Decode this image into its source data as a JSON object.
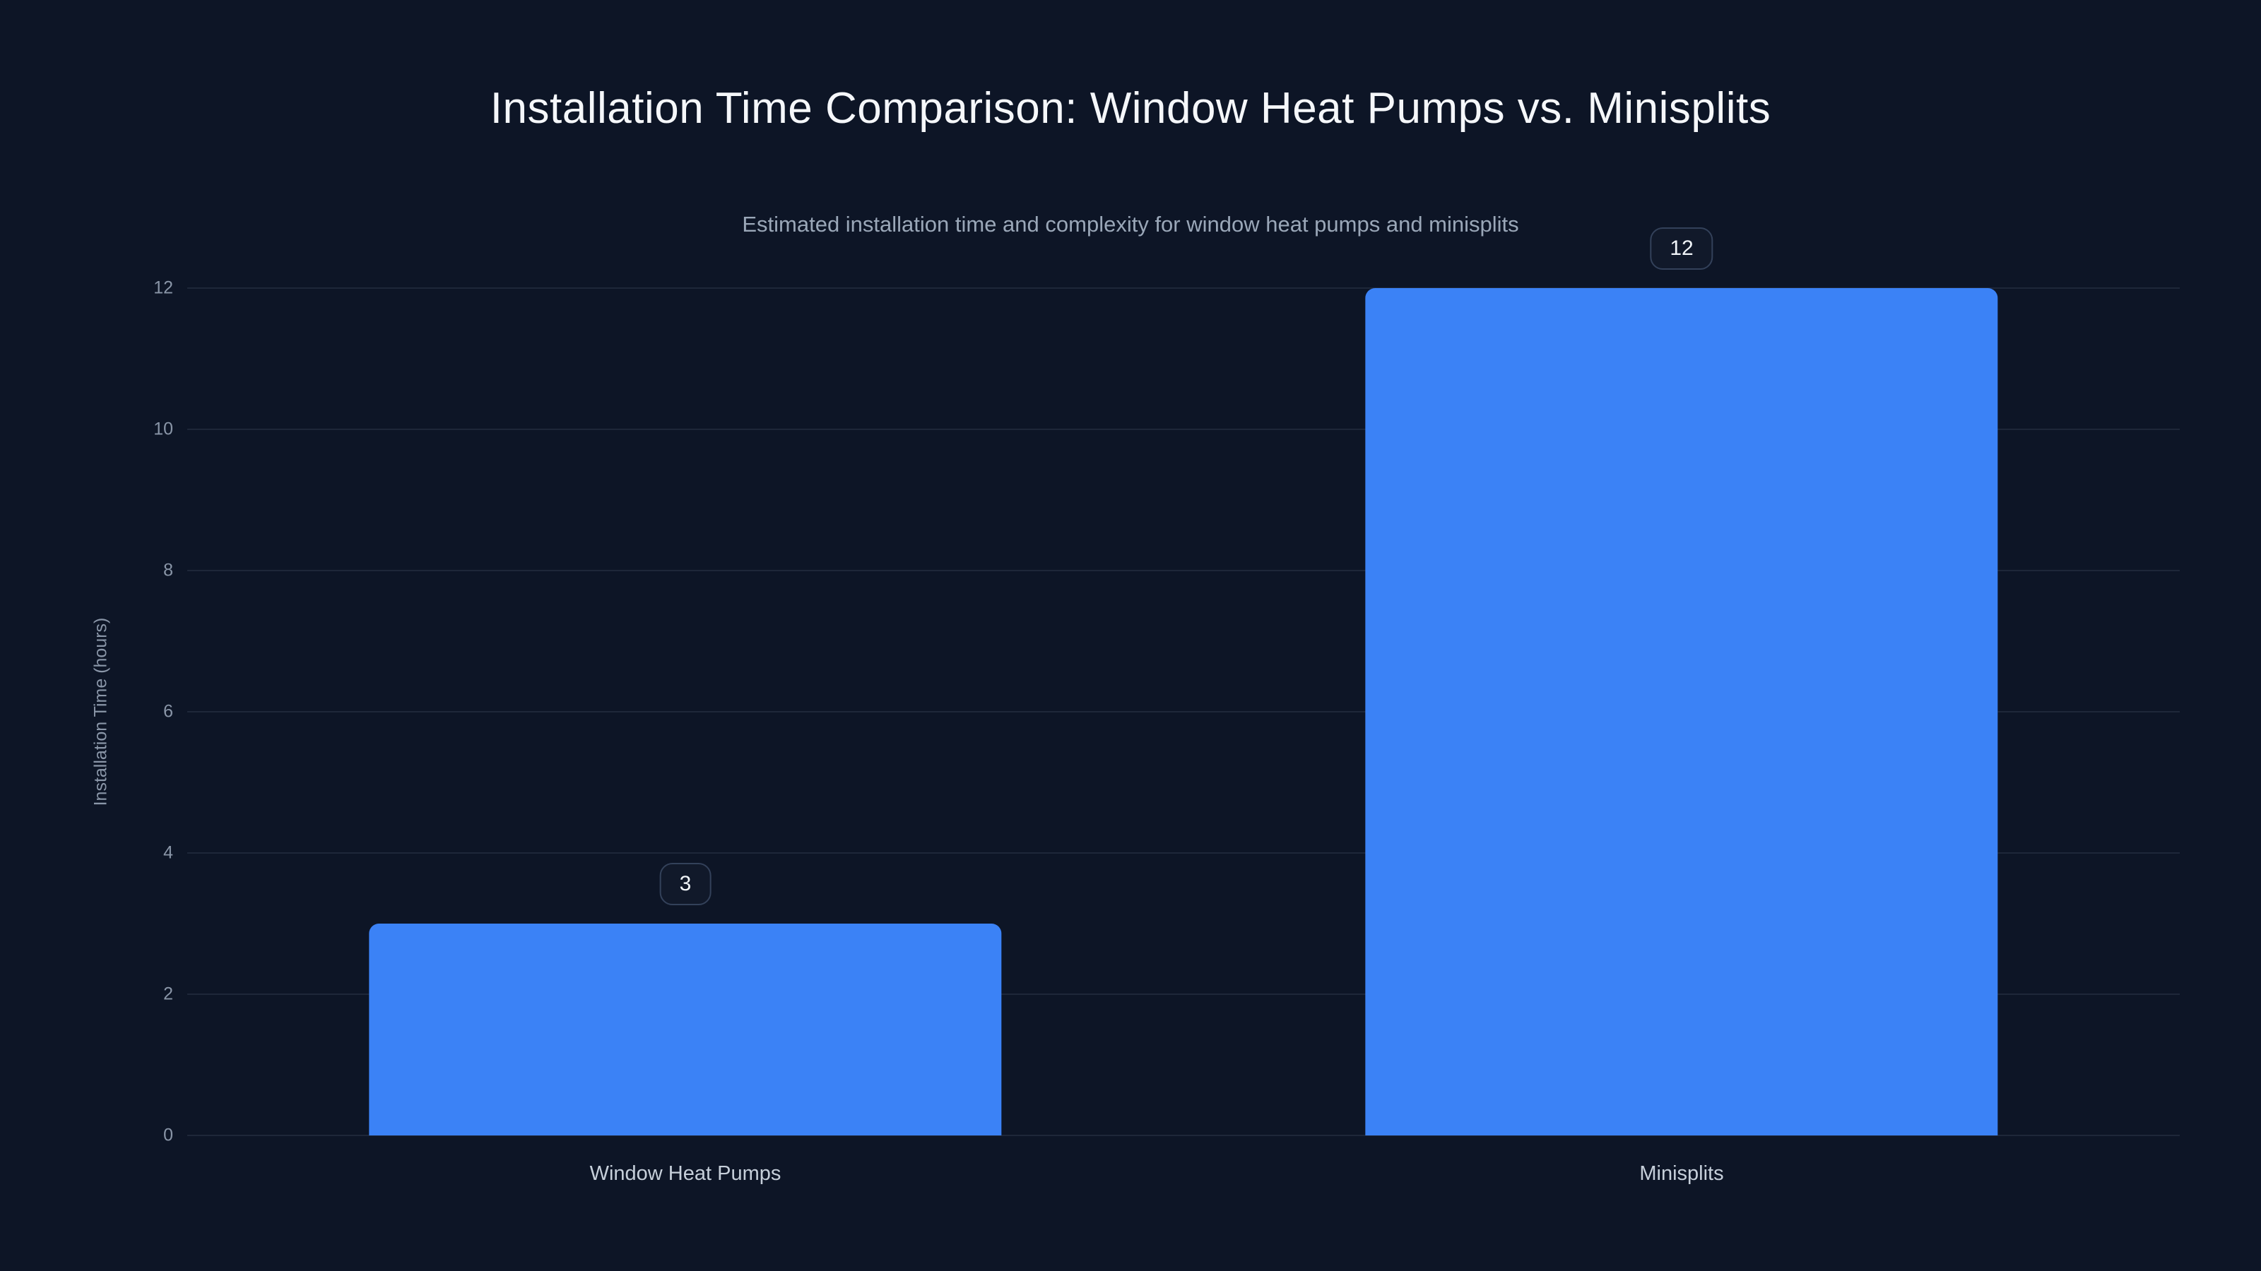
{
  "chart_data": {
    "type": "bar",
    "title": "Installation Time Comparison: Window Heat Pumps vs. Minisplits",
    "subtitle": "Estimated installation time and complexity for window heat pumps and minisplits",
    "xlabel": "",
    "ylabel": "Installation Time (hours)",
    "categories": [
      "Window Heat Pumps",
      "Minisplits"
    ],
    "values": [
      3,
      12
    ],
    "value_labels": [
      "3",
      "12"
    ],
    "yticks": [
      0,
      2,
      4,
      6,
      8,
      10,
      12
    ],
    "ylim": [
      0,
      12
    ],
    "grid": true,
    "legend": false,
    "bar_color": "#3b82f6",
    "background": "#0d1526",
    "title_color": "#f5f7fa",
    "subtitle_color": "#9aa7b8",
    "tick_color": "#8a96a8"
  }
}
